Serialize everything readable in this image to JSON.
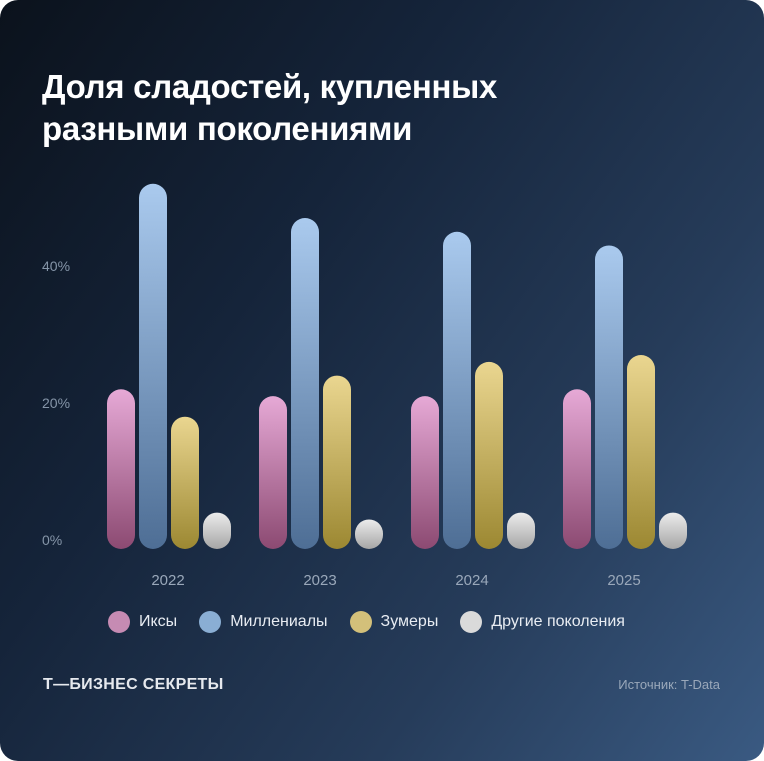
{
  "title_lines": [
    "Доля сладостей, купленных",
    "разными поколениями"
  ],
  "brand": "Т—БИЗНЕС СЕКРЕТЫ",
  "source": "Источник: T-Data",
  "chart_data": {
    "type": "bar",
    "title": "Доля сладостей, купленных разными поколениями",
    "categories": [
      "2022",
      "2023",
      "2024",
      "2025"
    ],
    "yticks": [
      "0%",
      "20%",
      "40%"
    ],
    "ylim": [
      0,
      55
    ],
    "grid": false,
    "legend": "bottom",
    "series": [
      {
        "name": "Иксы",
        "color": "#c68bb3",
        "values": [
          22,
          21,
          21,
          22
        ]
      },
      {
        "name": "Миллениалы",
        "color": "#8aaed4",
        "values": [
          52,
          47,
          45,
          43
        ]
      },
      {
        "name": "Зумеры",
        "color": "#d3c07a",
        "values": [
          18,
          24,
          26,
          27
        ]
      },
      {
        "name": "Другие поколения",
        "color": "#dadada",
        "values": [
          4,
          3,
          4,
          4
        ]
      }
    ]
  }
}
